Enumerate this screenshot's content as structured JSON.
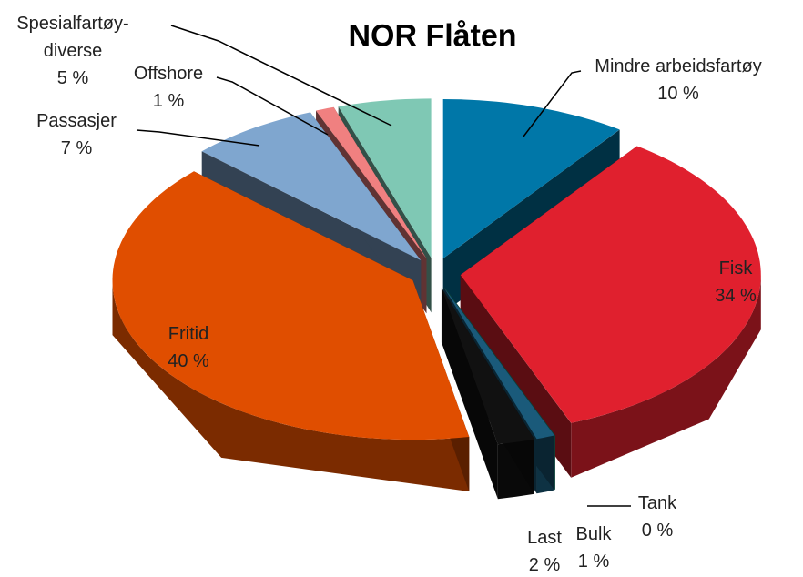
{
  "chart_data": {
    "type": "pie",
    "title": "NOR Flåten",
    "categories": [
      "Mindre arbeidsfartøy",
      "Fisk",
      "Tank",
      "Bulk",
      "Last",
      "Fritid",
      "Passasjer",
      "Offshore",
      "Spesialfartøy-diverse"
    ],
    "values": [
      10,
      34,
      0,
      1,
      2,
      40,
      7,
      1,
      5
    ],
    "value_labels": [
      "10 %",
      "34 %",
      "0 %",
      "1 %",
      "2 %",
      "40 %",
      "7 %",
      "1 %",
      "5 %"
    ],
    "colors": [
      "#0077a8",
      "#e0202e",
      "#1aa08a",
      "#1a5a7a",
      "#111111",
      "#e04e00",
      "#7fa6cf",
      "#f08080",
      "#7fc8b4"
    ],
    "exploded": true,
    "three_d": true
  }
}
